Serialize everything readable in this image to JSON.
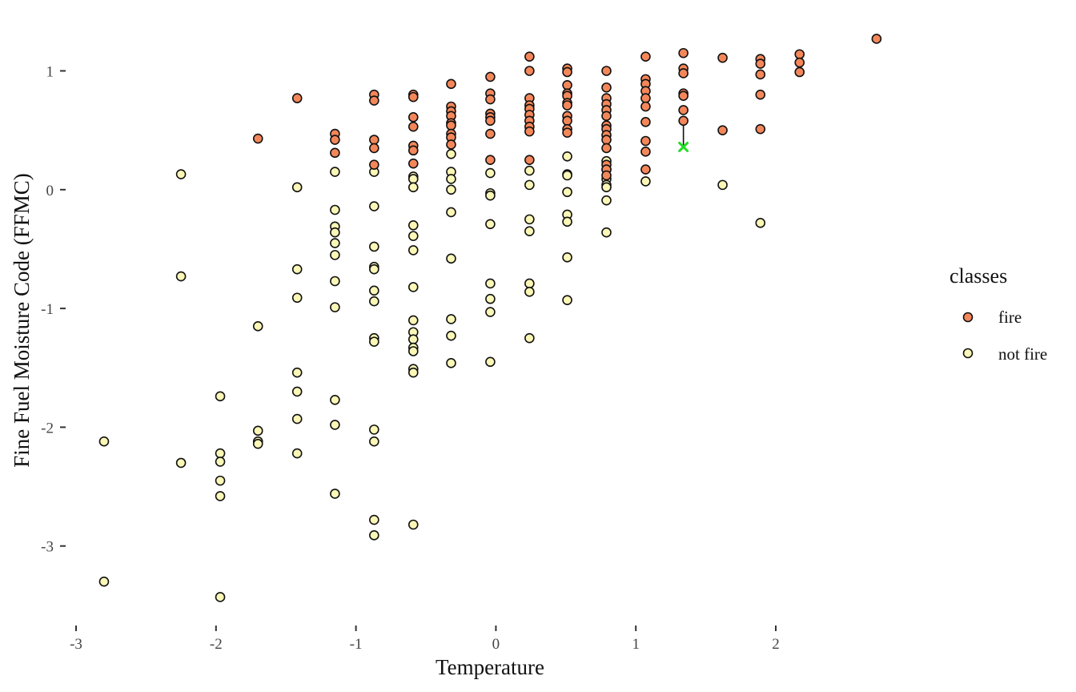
{
  "chart_data": {
    "type": "scatter",
    "title": "",
    "xlabel": "Temperature",
    "ylabel": "Fine Fuel Moisture Code (FFMC)",
    "xlim": [
      -3.05,
      2.9
    ],
    "ylim": [
      -3.6,
      1.35
    ],
    "xticks": [
      -3,
      -2,
      -1,
      0,
      1,
      2
    ],
    "yticks": [
      -3,
      -2,
      -1,
      0,
      1
    ],
    "grid": false,
    "legend": {
      "title": "classes",
      "placement": "right"
    },
    "colors": {
      "fire": "#f4875a",
      "not fire": "#fbf7b6",
      "outline": "#111111",
      "query": "#22dd22"
    },
    "series": [
      {
        "name": "fire",
        "points": [
          [
            -1.7,
            0.43
          ],
          [
            -1.42,
            0.77
          ],
          [
            -1.15,
            0.47
          ],
          [
            -1.15,
            0.42
          ],
          [
            -1.15,
            0.31
          ],
          [
            -0.87,
            0.8
          ],
          [
            -0.87,
            0.75
          ],
          [
            -0.87,
            0.42
          ],
          [
            -0.87,
            0.35
          ],
          [
            -0.87,
            0.21
          ],
          [
            -0.59,
            0.8
          ],
          [
            -0.59,
            0.78
          ],
          [
            -0.59,
            0.61
          ],
          [
            -0.59,
            0.53
          ],
          [
            -0.59,
            0.37
          ],
          [
            -0.59,
            0.33
          ],
          [
            -0.59,
            0.22
          ],
          [
            -0.32,
            0.89
          ],
          [
            -0.32,
            0.7
          ],
          [
            -0.32,
            0.66
          ],
          [
            -0.32,
            0.62
          ],
          [
            -0.32,
            0.56
          ],
          [
            -0.32,
            0.54
          ],
          [
            -0.32,
            0.47
          ],
          [
            -0.32,
            0.44
          ],
          [
            -0.32,
            0.38
          ],
          [
            -0.04,
            0.95
          ],
          [
            -0.04,
            0.81
          ],
          [
            -0.04,
            0.76
          ],
          [
            -0.04,
            0.64
          ],
          [
            -0.04,
            0.61
          ],
          [
            -0.04,
            0.58
          ],
          [
            -0.04,
            0.47
          ],
          [
            -0.04,
            0.25
          ],
          [
            0.24,
            1.12
          ],
          [
            0.24,
            1.0
          ],
          [
            0.24,
            0.77
          ],
          [
            0.24,
            0.71
          ],
          [
            0.24,
            0.68
          ],
          [
            0.24,
            0.63
          ],
          [
            0.24,
            0.58
          ],
          [
            0.24,
            0.53
          ],
          [
            0.24,
            0.49
          ],
          [
            0.24,
            0.25
          ],
          [
            0.51,
            1.02
          ],
          [
            0.51,
            0.99
          ],
          [
            0.51,
            0.88
          ],
          [
            0.51,
            0.81
          ],
          [
            0.51,
            0.79
          ],
          [
            0.51,
            0.73
          ],
          [
            0.51,
            0.71
          ],
          [
            0.51,
            0.62
          ],
          [
            0.51,
            0.58
          ],
          [
            0.51,
            0.51
          ],
          [
            0.51,
            0.48
          ],
          [
            0.79,
            1.0
          ],
          [
            0.79,
            0.86
          ],
          [
            0.79,
            0.77
          ],
          [
            0.79,
            0.72
          ],
          [
            0.79,
            0.67
          ],
          [
            0.79,
            0.62
          ],
          [
            0.79,
            0.54
          ],
          [
            0.79,
            0.51
          ],
          [
            0.79,
            0.46
          ],
          [
            0.79,
            0.42
          ],
          [
            0.79,
            0.35
          ],
          [
            0.79,
            0.21
          ],
          [
            0.79,
            0.17
          ],
          [
            0.79,
            0.12
          ],
          [
            1.07,
            1.12
          ],
          [
            1.07,
            0.93
          ],
          [
            1.07,
            0.89
          ],
          [
            1.07,
            0.83
          ],
          [
            1.07,
            0.77
          ],
          [
            1.07,
            0.7
          ],
          [
            1.07,
            0.57
          ],
          [
            1.07,
            0.41
          ],
          [
            1.07,
            0.32
          ],
          [
            1.07,
            0.17
          ],
          [
            1.34,
            1.15
          ],
          [
            1.34,
            1.02
          ],
          [
            1.34,
            0.98
          ],
          [
            1.34,
            0.81
          ],
          [
            1.34,
            0.79
          ],
          [
            1.34,
            0.67
          ],
          [
            1.34,
            0.58
          ],
          [
            1.62,
            1.11
          ],
          [
            1.62,
            0.5
          ],
          [
            1.89,
            1.1
          ],
          [
            1.89,
            1.06
          ],
          [
            1.89,
            0.97
          ],
          [
            1.89,
            0.8
          ],
          [
            1.89,
            0.51
          ],
          [
            2.17,
            1.14
          ],
          [
            2.17,
            1.07
          ],
          [
            2.17,
            0.99
          ],
          [
            2.72,
            1.27
          ]
        ]
      },
      {
        "name": "not fire",
        "points": [
          [
            -2.8,
            -2.12
          ],
          [
            -2.8,
            -3.3
          ],
          [
            -2.25,
            0.13
          ],
          [
            -2.25,
            -0.73
          ],
          [
            -2.25,
            -2.3
          ],
          [
            -1.97,
            -1.74
          ],
          [
            -1.97,
            -2.22
          ],
          [
            -1.97,
            -2.29
          ],
          [
            -1.97,
            -2.45
          ],
          [
            -1.97,
            -2.58
          ],
          [
            -1.97,
            -3.43
          ],
          [
            -1.7,
            -1.15
          ],
          [
            -1.7,
            -2.03
          ],
          [
            -1.7,
            -2.12
          ],
          [
            -1.7,
            -2.14
          ],
          [
            -1.42,
            0.02
          ],
          [
            -1.42,
            -0.67
          ],
          [
            -1.42,
            -0.91
          ],
          [
            -1.42,
            -1.54
          ],
          [
            -1.42,
            -1.7
          ],
          [
            -1.42,
            -1.93
          ],
          [
            -1.42,
            -2.22
          ],
          [
            -1.15,
            0.15
          ],
          [
            -1.15,
            -0.17
          ],
          [
            -1.15,
            -0.31
          ],
          [
            -1.15,
            -0.36
          ],
          [
            -1.15,
            -0.45
          ],
          [
            -1.15,
            -0.55
          ],
          [
            -1.15,
            -0.77
          ],
          [
            -1.15,
            -0.99
          ],
          [
            -1.15,
            -1.77
          ],
          [
            -1.15,
            -1.98
          ],
          [
            -1.15,
            -2.56
          ],
          [
            -0.87,
            0.15
          ],
          [
            -0.87,
            -0.14
          ],
          [
            -0.87,
            -0.48
          ],
          [
            -0.87,
            -0.65
          ],
          [
            -0.87,
            -0.67
          ],
          [
            -0.87,
            -0.85
          ],
          [
            -0.87,
            -0.94
          ],
          [
            -0.87,
            -1.25
          ],
          [
            -0.87,
            -1.28
          ],
          [
            -0.87,
            -2.02
          ],
          [
            -0.87,
            -2.12
          ],
          [
            -0.87,
            -2.78
          ],
          [
            -0.87,
            -2.91
          ],
          [
            -0.59,
            0.11
          ],
          [
            -0.59,
            0.09
          ],
          [
            -0.59,
            0.02
          ],
          [
            -0.59,
            -0.3
          ],
          [
            -0.59,
            -0.39
          ],
          [
            -0.59,
            -0.51
          ],
          [
            -0.59,
            -0.82
          ],
          [
            -0.59,
            -1.1
          ],
          [
            -0.59,
            -1.2
          ],
          [
            -0.59,
            -1.26
          ],
          [
            -0.59,
            -1.33
          ],
          [
            -0.59,
            -1.36
          ],
          [
            -0.59,
            -1.51
          ],
          [
            -0.59,
            -1.54
          ],
          [
            -0.59,
            -2.82
          ],
          [
            -0.32,
            0.3
          ],
          [
            -0.32,
            0.15
          ],
          [
            -0.32,
            0.09
          ],
          [
            -0.32,
            0.0
          ],
          [
            -0.32,
            -0.19
          ],
          [
            -0.32,
            -0.58
          ],
          [
            -0.32,
            -1.09
          ],
          [
            -0.32,
            -1.23
          ],
          [
            -0.32,
            -1.46
          ],
          [
            -0.04,
            0.14
          ],
          [
            -0.04,
            -0.03
          ],
          [
            -0.04,
            -0.05
          ],
          [
            -0.04,
            -0.29
          ],
          [
            -0.04,
            -0.79
          ],
          [
            -0.04,
            -0.92
          ],
          [
            -0.04,
            -1.03
          ],
          [
            -0.04,
            -1.45
          ],
          [
            0.24,
            0.16
          ],
          [
            0.24,
            0.04
          ],
          [
            0.24,
            -0.25
          ],
          [
            0.24,
            -0.35
          ],
          [
            0.24,
            -0.79
          ],
          [
            0.24,
            -0.86
          ],
          [
            0.24,
            -1.25
          ],
          [
            0.51,
            0.28
          ],
          [
            0.51,
            0.13
          ],
          [
            0.51,
            0.12
          ],
          [
            0.51,
            -0.02
          ],
          [
            0.51,
            -0.21
          ],
          [
            0.51,
            -0.27
          ],
          [
            0.51,
            -0.57
          ],
          [
            0.51,
            -0.93
          ],
          [
            0.79,
            0.24
          ],
          [
            0.79,
            0.17
          ],
          [
            0.79,
            0.09
          ],
          [
            0.79,
            0.04
          ],
          [
            0.79,
            0.02
          ],
          [
            0.79,
            -0.09
          ],
          [
            0.79,
            -0.36
          ],
          [
            1.07,
            0.07
          ],
          [
            1.62,
            0.04
          ],
          [
            1.89,
            -0.28
          ]
        ]
      }
    ],
    "query_point": {
      "x": 1.34,
      "y": 0.36,
      "nearest": [
        1.34,
        0.58
      ]
    }
  }
}
